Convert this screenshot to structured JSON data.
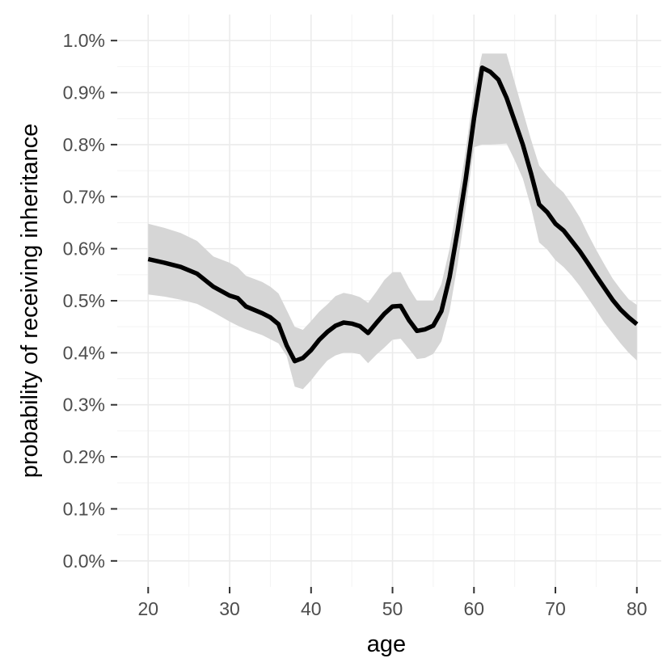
{
  "chart_data": {
    "type": "line",
    "xlabel": "age",
    "ylabel": "probability of receiving inheritance",
    "xlim": [
      16.2,
      83
    ],
    "ylim": [
      -0.0005,
      0.0105
    ],
    "x_ticks": [
      20,
      30,
      40,
      50,
      60,
      70,
      80
    ],
    "x_tick_labels": [
      "20",
      "30",
      "40",
      "50",
      "60",
      "70",
      "80"
    ],
    "y_ticks": [
      0,
      0.001,
      0.002,
      0.003,
      0.004,
      0.005,
      0.006,
      0.007,
      0.008,
      0.009,
      0.01
    ],
    "y_tick_labels": [
      "0.0%",
      "0.1%",
      "0.2%",
      "0.3%",
      "0.4%",
      "0.5%",
      "0.6%",
      "0.7%",
      "0.8%",
      "0.9%",
      "1.0%"
    ],
    "grid": true,
    "legend": false,
    "colors": {
      "line": "#000000",
      "ribbon": "#d6d6d6",
      "grid_major": "#ebebeb",
      "grid_minor": "#f3f3f3",
      "tick": "#333333"
    },
    "series": [
      {
        "x": [
          20,
          22,
          24,
          26,
          28,
          30,
          31,
          32,
          34,
          35,
          36,
          37,
          38,
          39,
          40,
          41,
          42,
          43,
          44,
          45,
          46,
          47,
          48,
          49,
          50,
          51,
          52,
          53,
          54,
          55,
          56,
          57,
          58,
          59,
          60,
          61,
          62,
          63,
          64,
          65,
          66,
          67,
          68,
          69,
          70,
          71,
          72,
          73,
          74,
          75,
          76,
          77,
          78,
          79,
          80
        ],
        "y": [
          0.0058,
          0.00573,
          0.00565,
          0.00552,
          0.00527,
          0.0051,
          0.00505,
          0.00489,
          0.00476,
          0.00468,
          0.00455,
          0.00414,
          0.00384,
          0.0039,
          0.00405,
          0.00425,
          0.0044,
          0.00452,
          0.00458,
          0.00456,
          0.00451,
          0.00438,
          0.00457,
          0.00475,
          0.00489,
          0.0049,
          0.00463,
          0.00442,
          0.00445,
          0.00452,
          0.0048,
          0.00545,
          0.00635,
          0.00735,
          0.0085,
          0.00948,
          0.0094,
          0.00925,
          0.0089,
          0.00845,
          0.008,
          0.00745,
          0.00685,
          0.0067,
          0.00648,
          0.00635,
          0.00615,
          0.00595,
          0.00572,
          0.00548,
          0.00525,
          0.00502,
          0.00483,
          0.00468,
          0.00455
        ],
        "lower": [
          0.00512,
          0.00508,
          0.00502,
          0.00494,
          0.00478,
          0.0046,
          0.00452,
          0.00445,
          0.00434,
          0.00426,
          0.00418,
          0.00394,
          0.00335,
          0.0033,
          0.00347,
          0.00367,
          0.00385,
          0.00395,
          0.004,
          0.004,
          0.00397,
          0.0038,
          0.00396,
          0.0041,
          0.00425,
          0.00427,
          0.00408,
          0.00388,
          0.0039,
          0.00398,
          0.00422,
          0.0048,
          0.0057,
          0.0068,
          0.00795,
          0.008,
          0.008,
          0.00801,
          0.00802,
          0.0077,
          0.00735,
          0.0068,
          0.00612,
          0.00598,
          0.00578,
          0.00565,
          0.00548,
          0.00528,
          0.00505,
          0.00482,
          0.00458,
          0.00438,
          0.00418,
          0.004,
          0.00385
        ],
        "upper": [
          0.00648,
          0.0064,
          0.0063,
          0.00615,
          0.00585,
          0.00573,
          0.00564,
          0.00548,
          0.00536,
          0.00527,
          0.00514,
          0.00482,
          0.0045,
          0.00444,
          0.00461,
          0.00479,
          0.00493,
          0.00509,
          0.00515,
          0.00512,
          0.00507,
          0.00496,
          0.00517,
          0.0054,
          0.00555,
          0.00555,
          0.00525,
          0.005,
          0.005,
          0.005,
          0.00532,
          0.006,
          0.0069,
          0.0079,
          0.00905,
          0.00975,
          0.00975,
          0.00975,
          0.00975,
          0.0092,
          0.00865,
          0.0081,
          0.0076,
          0.0074,
          0.00722,
          0.00708,
          0.00685,
          0.0066,
          0.00628,
          0.00598,
          0.0057,
          0.00543,
          0.00522,
          0.00503,
          0.00492
        ]
      }
    ]
  }
}
